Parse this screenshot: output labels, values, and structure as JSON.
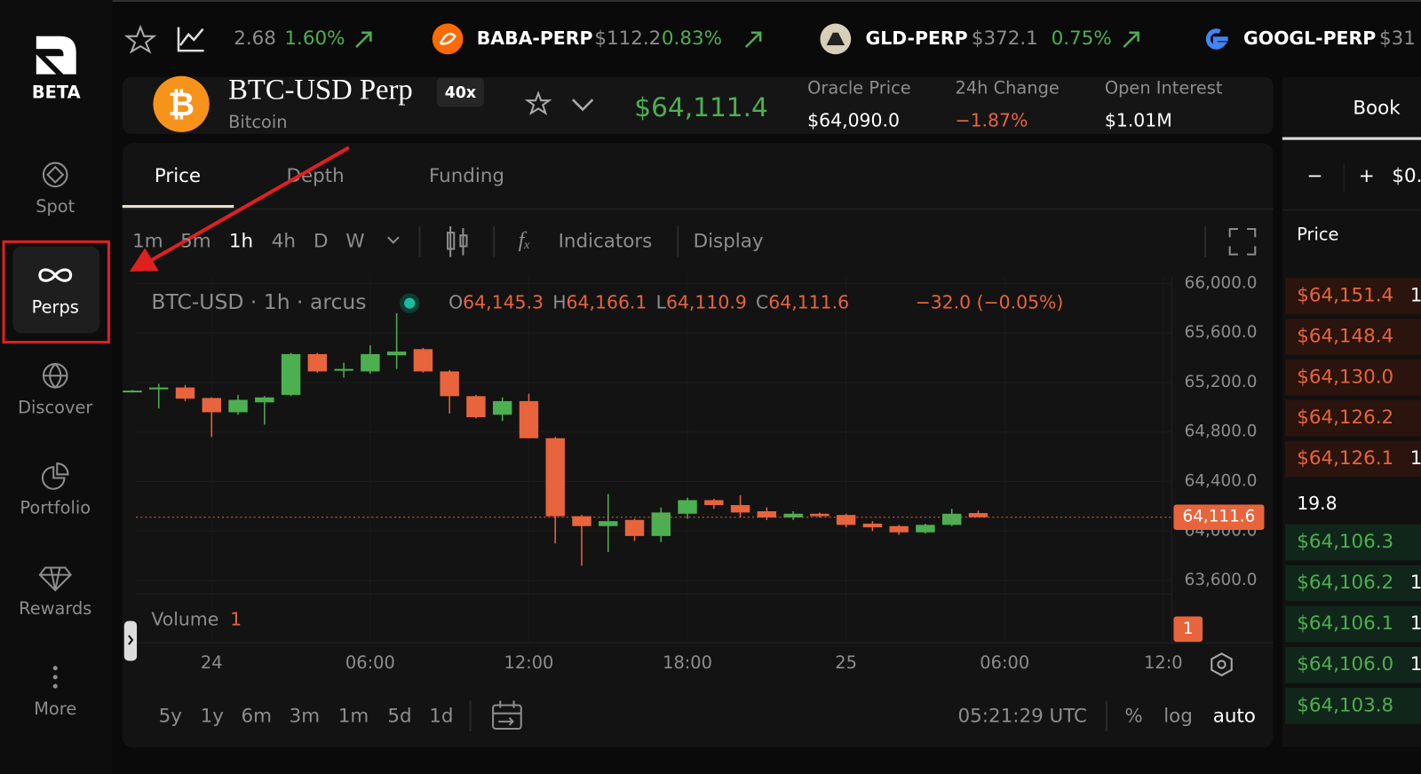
{
  "sidebar": {
    "logo": "BETA",
    "nav": [
      "Spot",
      "Perps",
      "Discover",
      "Portfolio",
      "Rewards",
      "More"
    ]
  },
  "ticker": [
    {
      "price": "2.68",
      "change": "1.60%"
    },
    {
      "symbol": "BABA-PERP",
      "price": "$112.2",
      "change": "0.83%"
    },
    {
      "symbol": "GLD-PERP",
      "price": "$372.1",
      "change": "0.75%"
    },
    {
      "symbol": "GOOGL-PERP",
      "price": "$31"
    }
  ],
  "market": {
    "name": "BTC-USD Perp",
    "leverage": "40x",
    "asset": "Bitcoin",
    "price": "$64,111.4",
    "stats": [
      {
        "label": "Oracle Price",
        "value": "$64,090.0"
      },
      {
        "label": "24h Change",
        "value": "−1.87%"
      },
      {
        "label": "Open Interest",
        "value": "$1.01M"
      }
    ]
  },
  "tabs": [
    "Price",
    "Depth",
    "Funding"
  ],
  "toolbar": {
    "intervals": [
      "1m",
      "5m",
      "1h",
      "4h",
      "D",
      "W"
    ],
    "indicators": "Indicators",
    "display": "Display"
  },
  "chart": {
    "legend": "BTC-USD · 1h · arcus",
    "ohlc": [
      {
        "key": "O",
        "value": "64,145.3"
      },
      {
        "key": "H",
        "value": "64,166.1"
      },
      {
        "key": "L",
        "value": "64,110.9"
      },
      {
        "key": "C",
        "value": "64,111.6"
      }
    ],
    "change": "−32.0 (−0.05%)",
    "volume_label": "Volume",
    "volume_value": "1",
    "ylim": [
      63500,
      66060
    ],
    "yticks": [
      {
        "value": 66000,
        "label": "66,000.0"
      },
      {
        "value": 65600,
        "label": "65,600.0"
      },
      {
        "value": 65200,
        "label": "65,200.0"
      },
      {
        "value": 64800,
        "label": "64,800.0"
      },
      {
        "value": 64400,
        "label": "64,400.0"
      },
      {
        "value": 64000,
        "label": "64,000.0"
      },
      {
        "value": 63600,
        "label": "63,600.0"
      }
    ],
    "last_price": {
      "value": 64111.6,
      "label": "64,111.6"
    },
    "xlabels": [
      "24",
      "06:00",
      "12:00",
      "18:00",
      "25",
      "06:00",
      "12:0"
    ],
    "candles": [
      [
        65130,
        65140,
        65120,
        65135
      ],
      [
        65145,
        65190,
        64990,
        65160
      ],
      [
        65160,
        65180,
        65050,
        65070
      ],
      [
        65075,
        65080,
        64760,
        64960
      ],
      [
        64960,
        65100,
        64940,
        65060
      ],
      [
        65040,
        65090,
        64860,
        65080
      ],
      [
        65100,
        65440,
        65090,
        65430
      ],
      [
        65430,
        65440,
        65280,
        65290
      ],
      [
        65300,
        65360,
        65240,
        65310
      ],
      [
        65290,
        65500,
        65270,
        65430
      ],
      [
        65420,
        65760,
        65310,
        65450
      ],
      [
        65470,
        65480,
        65280,
        65290
      ],
      [
        65290,
        65300,
        64950,
        65090
      ],
      [
        65090,
        65100,
        64910,
        64920
      ],
      [
        64940,
        65080,
        64890,
        65050
      ],
      [
        65050,
        65110,
        64750,
        64750
      ],
      [
        64750,
        64760,
        63900,
        64120
      ],
      [
        64120,
        64130,
        63720,
        64040
      ],
      [
        64040,
        64300,
        63830,
        64080
      ],
      [
        64090,
        64100,
        63920,
        63960
      ],
      [
        63960,
        64190,
        63910,
        64150
      ],
      [
        64140,
        64270,
        64100,
        64250
      ],
      [
        64250,
        64260,
        64180,
        64210
      ],
      [
        64210,
        64290,
        64110,
        64150
      ],
      [
        64160,
        64190,
        64090,
        64110
      ],
      [
        64110,
        64160,
        64090,
        64140
      ],
      [
        64140,
        64150,
        64110,
        64120
      ],
      [
        64130,
        64140,
        64030,
        64050
      ],
      [
        64060,
        64080,
        64000,
        64030
      ],
      [
        64040,
        64050,
        63970,
        63990
      ],
      [
        63990,
        64060,
        63980,
        64050
      ],
      [
        64050,
        64180,
        64040,
        64140
      ],
      [
        64145.3,
        64166.1,
        64110.9,
        64111.6
      ]
    ]
  },
  "bottom": {
    "ranges": [
      "5y",
      "1y",
      "6m",
      "3m",
      "1m",
      "5d",
      "1d"
    ],
    "time": "05:21:29 UTC",
    "options": [
      "%",
      "log",
      "auto"
    ]
  },
  "book": {
    "title": "Book",
    "controls": [
      "−",
      "+",
      "$0."
    ],
    "header": "Price",
    "asks": [
      {
        "price": "$64,151.4",
        "size": "1"
      },
      {
        "price": "$64,148.4"
      },
      {
        "price": "$64,130.0"
      },
      {
        "price": "$64,126.2"
      },
      {
        "price": "$64,126.1",
        "size": "1"
      }
    ],
    "spread": "19.8",
    "bids": [
      {
        "price": "$64,106.3"
      },
      {
        "price": "$64,106.2",
        "size": "1"
      },
      {
        "price": "$64,106.1",
        "size": "1"
      },
      {
        "price": "$64,106.0",
        "size": "1"
      },
      {
        "price": "$64,103.8"
      }
    ]
  }
}
